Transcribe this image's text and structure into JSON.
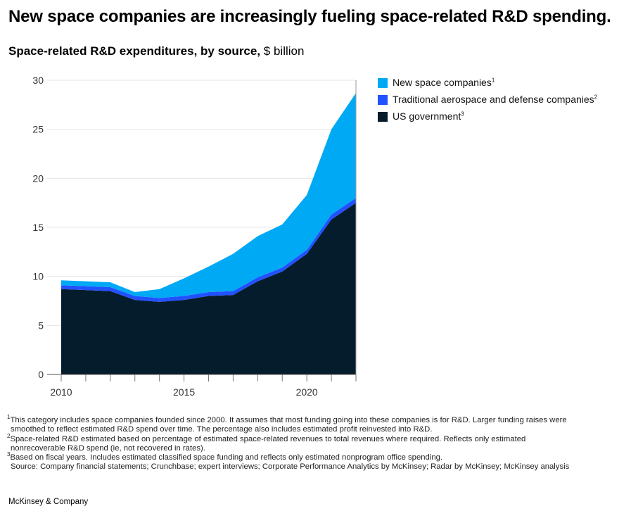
{
  "headline": "New space companies are increasingly fueling space-related R&D spending.",
  "subtitle": {
    "bold": "Space-related R&D expenditures, by source,",
    "unit": "$ billion"
  },
  "chart_data": {
    "type": "area",
    "stacked": true,
    "x": [
      2010,
      2011,
      2012,
      2013,
      2014,
      2015,
      2016,
      2017,
      2018,
      2019,
      2020,
      2021,
      2022
    ],
    "x_ticks": [
      "2010",
      "2015",
      "2020"
    ],
    "y_ticks": [
      "0",
      "5",
      "10",
      "15",
      "20",
      "25",
      "30"
    ],
    "ylim": [
      0,
      30
    ],
    "grid": true,
    "legend_position": "top-right",
    "series": [
      {
        "name": "US government",
        "footnote": "3",
        "color": "#051c2c",
        "values": [
          8.7,
          8.6,
          8.5,
          7.6,
          7.4,
          7.6,
          8.0,
          8.1,
          9.5,
          10.5,
          12.3,
          15.8,
          17.5
        ]
      },
      {
        "name": "Traditional aerospace and defense companies",
        "footnote": "2",
        "color": "#2251ff",
        "values": [
          0.4,
          0.4,
          0.4,
          0.4,
          0.4,
          0.4,
          0.4,
          0.4,
          0.4,
          0.4,
          0.4,
          0.5,
          0.5
        ]
      },
      {
        "name": "New space companies",
        "footnote": "1",
        "color": "#00a9f4",
        "values": [
          0.5,
          0.5,
          0.5,
          0.4,
          0.9,
          1.8,
          2.6,
          3.8,
          4.2,
          4.4,
          5.6,
          8.7,
          10.7
        ]
      }
    ]
  },
  "footnotes": [
    {
      "mark": "1",
      "lines": [
        "This category includes space companies founded since 2000. It assumes that most funding going into these companies is for R&D. Larger funding raises were",
        "smoothed to reflect estimated R&D spend over time. The percentage also includes estimated profit reinvested into R&D."
      ]
    },
    {
      "mark": "2",
      "lines": [
        "Space-related R&D estimated based on percentage of estimated space-related revenues to total revenues where required. Reflects only estimated",
        "nonrecoverable R&D spend (ie, not recovered in rates)."
      ]
    },
    {
      "mark": "3",
      "lines": [
        "Based on fiscal years. Includes estimated classified space funding and reflects only estimated nonprogram office spending."
      ]
    }
  ],
  "source": "Source: Company financial statements; Crunchbase; expert interviews; Corporate Performance Analytics by McKinsey; Radar by McKinsey; McKinsey analysis",
  "brand": "McKinsey & Company"
}
